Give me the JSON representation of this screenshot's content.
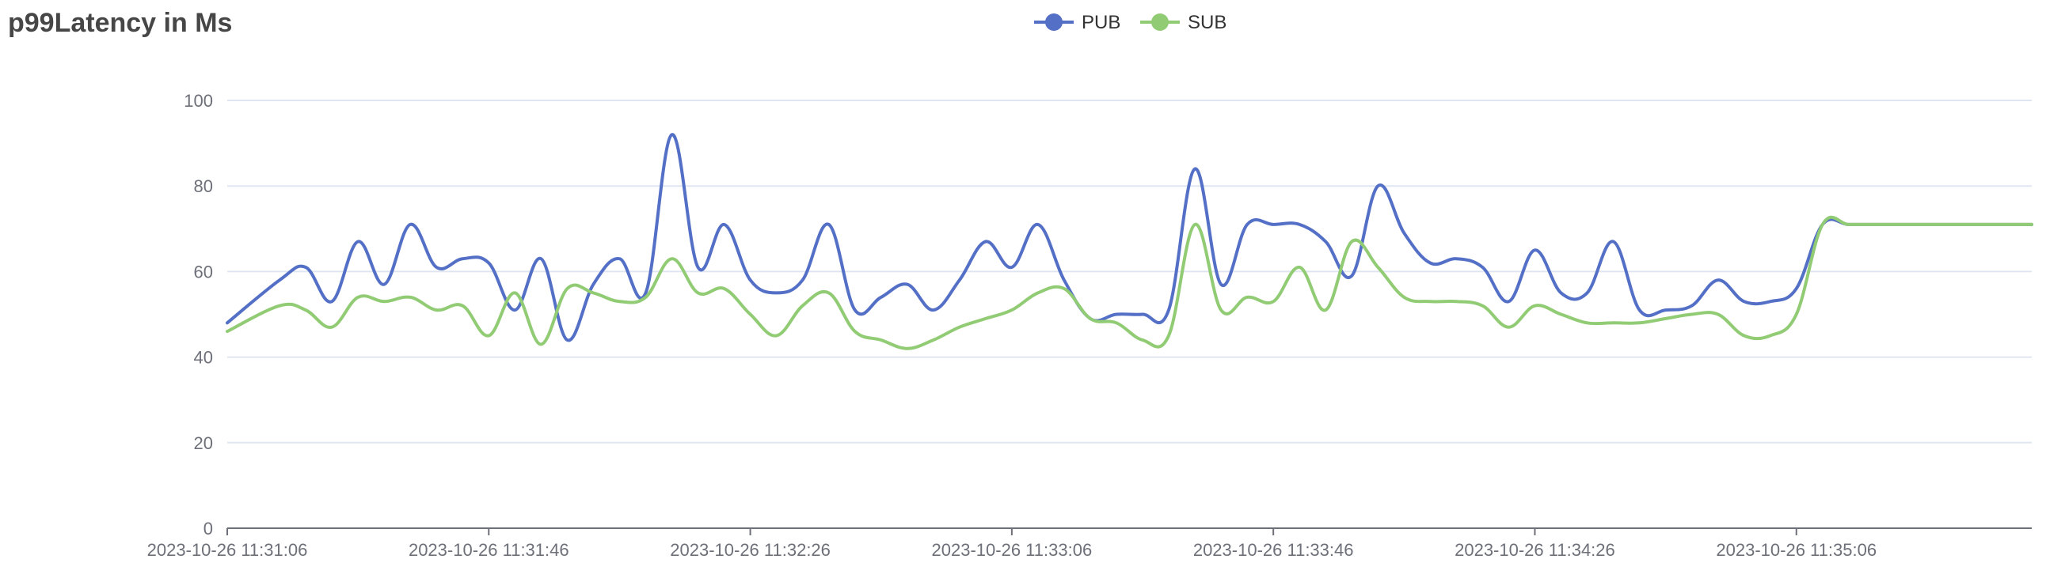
{
  "chart_data": {
    "type": "line",
    "title": "p99Latency in Ms",
    "xlabel": "",
    "ylabel": "",
    "ylim": [
      0,
      100
    ],
    "y_ticks": [
      "0",
      "20",
      "40",
      "60",
      "80",
      "100"
    ],
    "x_ticks": [
      "2023-10-26 11:31:06",
      "2023-10-26 11:31:46",
      "2023-10-26 11:32:26",
      "2023-10-26 11:33:06",
      "2023-10-26 11:33:46",
      "2023-10-26 11:34:26",
      "2023-10-26 11:35:06"
    ],
    "x_range_seconds": [
      0,
      276
    ],
    "grid": "horizontal",
    "legend_position": "top-center",
    "smooth": true,
    "series": [
      {
        "name": "PUB",
        "color": "#5470c6",
        "x": [
          0,
          8,
          12,
          16,
          20,
          24,
          28,
          32,
          36,
          40,
          44,
          48,
          52,
          56,
          60,
          64,
          68,
          72,
          76,
          80,
          84,
          88,
          92,
          96,
          100,
          104,
          108,
          112,
          116,
          120,
          124,
          128,
          132,
          136,
          140,
          144,
          148,
          152,
          156,
          160,
          164,
          168,
          172,
          176,
          180,
          184,
          188,
          192,
          196,
          200,
          204,
          208,
          212,
          216,
          220,
          224,
          228,
          232,
          236,
          240,
          244,
          248,
          252,
          256,
          260,
          264,
          268,
          272,
          276
        ],
        "y": [
          48,
          58,
          61,
          53,
          67,
          57,
          71,
          61,
          63,
          62,
          51,
          63,
          44,
          57,
          63,
          55,
          92,
          61,
          71,
          58,
          55,
          58,
          71,
          51,
          54,
          57,
          51,
          58,
          67,
          61,
          71,
          58,
          49,
          50,
          50,
          51,
          84,
          57,
          71,
          71,
          71,
          67,
          59,
          80,
          69,
          62,
          63,
          61,
          53,
          65,
          55,
          55,
          67,
          51,
          51,
          52,
          58,
          53,
          53,
          56,
          71,
          71,
          71,
          71,
          71,
          71,
          71,
          71,
          71
        ]
      },
      {
        "name": "SUB",
        "color": "#91cc75",
        "x": [
          0,
          8,
          12,
          16,
          20,
          24,
          28,
          32,
          36,
          40,
          44,
          48,
          52,
          56,
          60,
          64,
          68,
          72,
          76,
          80,
          84,
          88,
          92,
          96,
          100,
          104,
          108,
          112,
          116,
          120,
          124,
          128,
          132,
          136,
          140,
          144,
          148,
          152,
          156,
          160,
          164,
          168,
          172,
          176,
          180,
          184,
          188,
          192,
          196,
          200,
          204,
          208,
          212,
          216,
          220,
          224,
          228,
          232,
          236,
          240,
          244,
          248,
          252,
          256,
          260,
          264,
          268,
          272,
          276
        ],
        "y": [
          46,
          52,
          51,
          47,
          54,
          53,
          54,
          51,
          52,
          45,
          55,
          43,
          56,
          55,
          53,
          54,
          63,
          55,
          56,
          50,
          45,
          52,
          55,
          46,
          44,
          42,
          44,
          47,
          49,
          51,
          55,
          56,
          49,
          48,
          44,
          45,
          71,
          51,
          54,
          53,
          61,
          51,
          67,
          61,
          54,
          53,
          53,
          52,
          47,
          52,
          50,
          48,
          48,
          48,
          49,
          50,
          50,
          45,
          45,
          50,
          71,
          71,
          71,
          71,
          71,
          71,
          71,
          71,
          71
        ]
      }
    ]
  }
}
